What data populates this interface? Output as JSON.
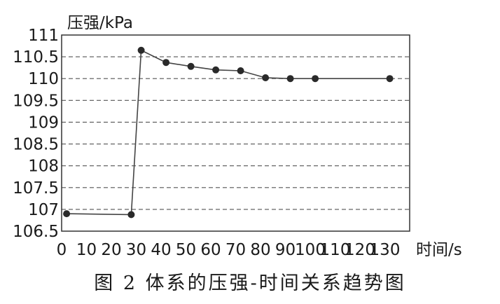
{
  "chart_data": {
    "type": "line",
    "ylabel": "压强/kPa",
    "xlabel": "时间/s",
    "ylim": [
      106.5,
      111
    ],
    "xlim": [
      0,
      140
    ],
    "y_ticks": [
      106.5,
      107,
      107.5,
      108,
      108.5,
      109,
      109.5,
      110,
      110.5,
      111
    ],
    "y_tick_labels": [
      "106.5",
      "107",
      "107.5",
      "108",
      "108.5",
      "109",
      "109.5",
      "110",
      "110.5",
      "111"
    ],
    "x_ticks": [
      0,
      10,
      20,
      30,
      40,
      50,
      60,
      70,
      80,
      90,
      100,
      110,
      120,
      130
    ],
    "x_tick_labels": [
      "0",
      "10",
      "20",
      "30",
      "40",
      "50",
      "60",
      "70",
      "80",
      "90",
      "100",
      "110",
      "120",
      "130"
    ],
    "grid": "horizontal-dashed",
    "series": [
      {
        "x": [
          2,
          28,
          32,
          42,
          52,
          62,
          72,
          82,
          92,
          102,
          132
        ],
        "y": [
          106.9,
          106.88,
          110.65,
          110.37,
          110.28,
          110.2,
          110.18,
          110.02,
          110.0,
          110.0,
          110.0
        ]
      }
    ],
    "line_color": "#444444",
    "marker_color": "#2a2a2a"
  },
  "caption": "图 2  体系的压强-时间关系趋势图"
}
